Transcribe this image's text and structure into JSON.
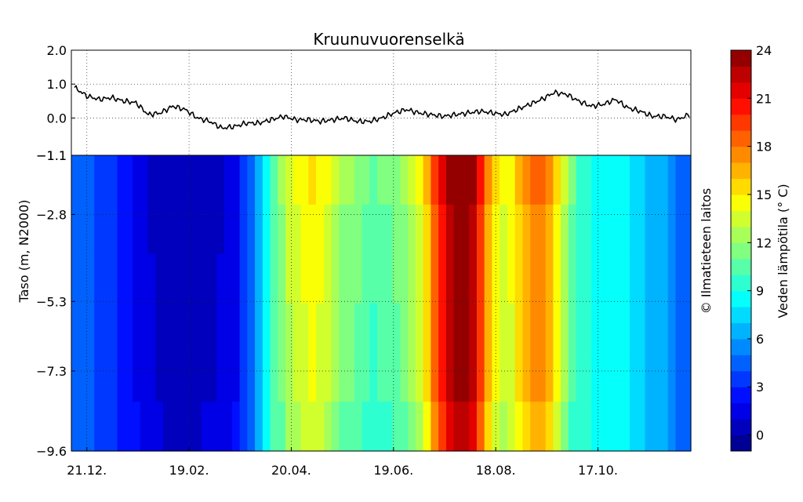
{
  "chart_data": [
    {
      "type": "line",
      "title": "Kruunuvuorenselkä",
      "ylim": [
        -1.1,
        2.0
      ],
      "yticks": [
        "2.0",
        "1.0",
        "0.0",
        "-1.1"
      ],
      "grid": true,
      "series": [
        {
          "values": [
            0.9,
            0.65,
            0.55,
            0.6,
            0.5,
            0.45,
            0.1,
            0.15,
            0.35,
            0.25,
            0.0,
            -0.1,
            -0.3,
            -0.25,
            -0.15,
            -0.15,
            -0.05,
            0.05,
            -0.05,
            -0.05,
            -0.1,
            -0.05,
            0.0,
            -0.1,
            -0.1,
            0.0,
            0.15,
            0.25,
            0.15,
            0.1,
            0.05,
            0.1,
            0.15,
            0.2,
            0.15,
            0.1,
            0.25,
            0.4,
            0.55,
            0.75,
            0.7,
            0.5,
            0.35,
            0.4,
            0.55,
            0.3,
            0.2,
            0.05,
            0.05,
            -0.05,
            0.1
          ]
        }
      ]
    },
    {
      "type": "heatmap",
      "ylabel": "Taso (m, N2000)",
      "ylim": [
        -9.6,
        -1.1
      ],
      "yticks": [
        "-1.1",
        "-2.8",
        "-5.3",
        "-7.3",
        "-9.6"
      ],
      "xticks": [
        "21.12.",
        "19.02.",
        "20.04.",
        "19.06.",
        "18.08.",
        "17.10."
      ],
      "grid": true,
      "surface_temps": [
        4,
        4,
        4,
        3.5,
        3,
        3,
        2.5,
        2,
        1.5,
        1,
        0.8,
        0.5,
        0.3,
        0,
        0,
        0,
        0.2,
        0.5,
        0.5,
        0.8,
        1,
        1.5,
        3,
        4.5,
        6,
        8,
        10,
        12,
        13.5,
        14,
        14.5,
        15,
        14.5,
        14,
        13,
        12,
        12,
        11.5,
        11,
        10.5,
        11,
        11,
        11.5,
        12,
        13,
        14,
        16,
        19,
        21,
        23,
        24,
        24,
        23,
        20,
        17,
        15,
        14,
        14.5,
        16,
        17,
        18,
        18,
        17,
        15,
        13,
        11,
        9.5,
        9,
        8.5,
        8,
        8,
        8,
        8,
        7,
        7,
        6.5,
        6.5,
        6,
        5,
        4,
        4
      ],
      "colorbar": {
        "label": "Veden lämpötila (° C)",
        "range": [
          -1,
          24
        ],
        "ticks": [
          "0",
          "3",
          "6",
          "9",
          "12",
          "15",
          "18",
          "21",
          "24"
        ],
        "colormap": "jet"
      },
      "credit": "© Ilmatieteen laitos"
    }
  ]
}
